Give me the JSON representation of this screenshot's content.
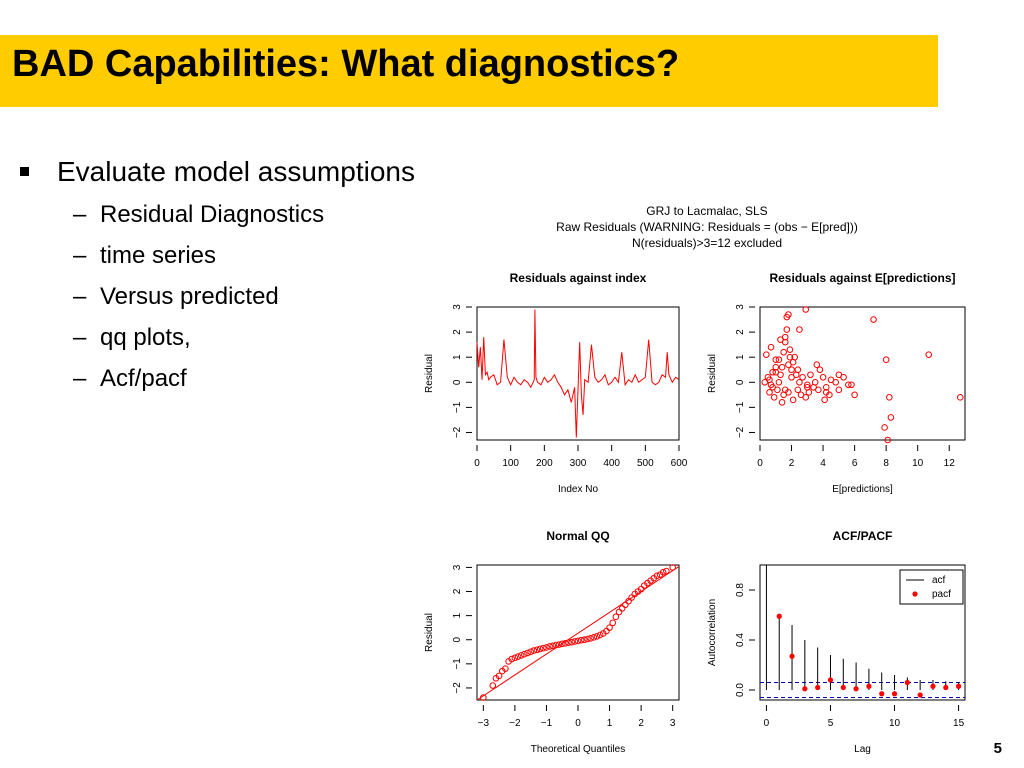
{
  "slide": {
    "title": "BAD Capabilities: What diagnostics?",
    "page_number": "5",
    "bullets": {
      "main": "Evaluate model assumptions",
      "subs": [
        "Residual Diagnostics",
        "time series",
        "Versus predicted",
        "qq plots,",
        "Acf/pacf"
      ],
      "dash": "–"
    },
    "figure_header": [
      "GRJ to Lacmalac, SLS",
      "Raw Residuals (WARNING: Residuals = (obs − E[pred]))",
      "N(residuals)>3=12 excluded"
    ]
  },
  "colors": {
    "title_bg": "#ffcc00",
    "series": "#ff0000",
    "ref_line": "#0000aa"
  },
  "chart_data": [
    {
      "type": "line",
      "title": "Residuals against index",
      "xlabel": "Index No",
      "ylabel": "Residual",
      "xlim": [
        0,
        600
      ],
      "ylim": [
        -2.3,
        3.0
      ],
      "xticks": [
        "0",
        "100",
        "200",
        "300",
        "400",
        "500",
        "600"
      ],
      "yticks": [
        "−2",
        "−1",
        "0",
        "1",
        "2",
        "3"
      ],
      "x": [
        0,
        5,
        10,
        15,
        20,
        25,
        30,
        35,
        40,
        50,
        60,
        70,
        80,
        90,
        100,
        110,
        120,
        130,
        140,
        150,
        160,
        170,
        172,
        175,
        180,
        190,
        200,
        210,
        220,
        230,
        240,
        250,
        260,
        270,
        280,
        290,
        295,
        300,
        305,
        310,
        315,
        320,
        330,
        340,
        350,
        360,
        370,
        380,
        390,
        400,
        410,
        420,
        430,
        440,
        450,
        460,
        470,
        480,
        490,
        500,
        510,
        520,
        530,
        540,
        550,
        560,
        565,
        570,
        580,
        590,
        600
      ],
      "y": [
        1.6,
        0.6,
        1.4,
        0.1,
        1.8,
        0.3,
        0.4,
        0.1,
        0.2,
        0.3,
        -0.1,
        0.0,
        1.7,
        0.2,
        -0.1,
        0.2,
        0.0,
        -0.1,
        0.1,
        0.0,
        -0.2,
        0.1,
        2.9,
        0.2,
        0.0,
        -0.1,
        0.2,
        0.0,
        0.1,
        0.3,
        0.0,
        -0.2,
        -0.5,
        -0.3,
        -0.8,
        -0.2,
        -2.2,
        -0.3,
        1.6,
        -0.5,
        -1.3,
        0.1,
        0.0,
        1.5,
        0.2,
        0.0,
        0.1,
        0.3,
        -0.1,
        0.0,
        0.2,
        0.0,
        1.2,
        -0.1,
        0.1,
        0.0,
        0.3,
        0.0,
        0.1,
        0.2,
        1.7,
        0.0,
        -0.1,
        0.0,
        0.3,
        0.2,
        1.2,
        0.3,
        0.0,
        0.2,
        0.1
      ]
    },
    {
      "type": "scatter",
      "title": "Residuals against E[predictions]",
      "xlabel": "E[predictions]",
      "ylabel": "Residual",
      "xlim": [
        0,
        13
      ],
      "ylim": [
        -2.3,
        3.0
      ],
      "xticks": [
        "0",
        "2",
        "4",
        "6",
        "8",
        "10",
        "12"
      ],
      "yticks": [
        "−2",
        "−1",
        "0",
        "1",
        "2",
        "3"
      ],
      "x": [
        0.3,
        0.5,
        0.7,
        0.8,
        1.0,
        1.2,
        1.3,
        1.5,
        1.6,
        1.7,
        1.8,
        1.9,
        2.0,
        2.1,
        2.3,
        2.5,
        2.7,
        3.0,
        3.2,
        3.5,
        3.8,
        4.0,
        4.2,
        4.5,
        4.8,
        5.0,
        5.3,
        5.6,
        6.0,
        0.6,
        0.9,
        1.1,
        1.4,
        1.5,
        1.8,
        2.1,
        2.4,
        2.6,
        2.9,
        3.1,
        3.4,
        3.7,
        4.1,
        4.4,
        0.4,
        0.7,
        1.0,
        1.3,
        1.6,
        1.9,
        2.2,
        1.7,
        1.8,
        2.5,
        2.9,
        7.2,
        8.0,
        8.2,
        8.3,
        7.9,
        8.1,
        10.7,
        12.7,
        0.6,
        0.8,
        1.0,
        1.2,
        1.4,
        1.6,
        2.0,
        2.4,
        3.0,
        3.6,
        4.2,
        5.0,
        5.8
      ],
      "y": [
        0.0,
        0.2,
        -0.1,
        0.4,
        0.6,
        0.9,
        0.3,
        1.2,
        1.6,
        2.1,
        0.7,
        1.0,
        0.5,
        0.8,
        0.3,
        0.0,
        0.2,
        -0.1,
        0.3,
        0.0,
        0.5,
        0.2,
        -0.2,
        0.1,
        0.0,
        -0.3,
        0.2,
        -0.1,
        -0.5,
        -0.4,
        -0.6,
        -0.3,
        -0.8,
        -0.5,
        -0.4,
        -0.7,
        -0.3,
        -0.5,
        -0.6,
        -0.4,
        -0.2,
        -0.3,
        -0.7,
        -0.5,
        1.1,
        1.4,
        0.9,
        1.7,
        1.8,
        1.3,
        1.0,
        2.6,
        2.7,
        2.1,
        2.9,
        2.5,
        0.9,
        -0.6,
        -1.4,
        -1.8,
        -2.3,
        1.1,
        -0.6,
        0.1,
        -0.2,
        0.4,
        0.0,
        0.6,
        -0.3,
        0.2,
        0.5,
        -0.2,
        0.7,
        -0.4,
        0.3,
        -0.1
      ]
    },
    {
      "type": "scatter",
      "title": "Normal QQ",
      "xlabel": "Theoretical Quantiles",
      "ylabel": "Residual",
      "xlim": [
        -3.2,
        3.2
      ],
      "ylim": [
        -2.5,
        3.1
      ],
      "xticks": [
        "−3",
        "−2",
        "−1",
        "0",
        "1",
        "2",
        "3"
      ],
      "yticks": [
        "−2",
        "−1",
        "0",
        "1",
        "2",
        "3"
      ],
      "x": [
        -3.0,
        -2.7,
        -2.6,
        -2.5,
        -2.4,
        -2.3,
        -2.2,
        -2.1,
        -2.0,
        -1.9,
        -1.8,
        -1.7,
        -1.6,
        -1.5,
        -1.4,
        -1.3,
        -1.2,
        -1.1,
        -1.0,
        -0.9,
        -0.8,
        -0.7,
        -0.6,
        -0.5,
        -0.4,
        -0.3,
        -0.2,
        -0.1,
        0.0,
        0.1,
        0.2,
        0.3,
        0.4,
        0.5,
        0.6,
        0.7,
        0.8,
        0.9,
        1.0,
        1.1,
        1.2,
        1.3,
        1.4,
        1.5,
        1.6,
        1.7,
        1.8,
        1.9,
        2.0,
        2.1,
        2.2,
        2.3,
        2.4,
        2.5,
        2.6,
        2.7,
        2.8,
        3.0
      ],
      "y": [
        -2.4,
        -1.9,
        -1.6,
        -1.5,
        -1.3,
        -1.2,
        -0.9,
        -0.8,
        -0.75,
        -0.7,
        -0.65,
        -0.6,
        -0.55,
        -0.5,
        -0.45,
        -0.42,
        -0.38,
        -0.35,
        -0.32,
        -0.28,
        -0.25,
        -0.22,
        -0.2,
        -0.17,
        -0.15,
        -0.12,
        -0.1,
        -0.07,
        -0.05,
        -0.02,
        0.0,
        0.03,
        0.06,
        0.1,
        0.14,
        0.2,
        0.26,
        0.36,
        0.5,
        0.7,
        0.95,
        1.15,
        1.3,
        1.45,
        1.6,
        1.75,
        1.9,
        2.0,
        2.1,
        2.25,
        2.35,
        2.45,
        2.55,
        2.65,
        2.7,
        2.8,
        2.85,
        3.0
      ],
      "reference_line": {
        "intercept": 0.0,
        "slope": 0.95
      }
    },
    {
      "type": "bar",
      "title": "ACF/PACF",
      "xlabel": "Lag",
      "ylabel": "Autocorrelation",
      "xlim": [
        -0.5,
        15.5
      ],
      "ylim": [
        -0.08,
        1.0
      ],
      "xticks": [
        "0",
        "5",
        "10",
        "15"
      ],
      "yticks": [
        "0.0",
        "0.4",
        "0.8"
      ],
      "lags": [
        0,
        1,
        2,
        3,
        4,
        5,
        6,
        7,
        8,
        9,
        10,
        11,
        12,
        13,
        14,
        15
      ],
      "series": [
        {
          "name": "acf",
          "values": [
            1.0,
            0.61,
            0.52,
            0.4,
            0.34,
            0.28,
            0.25,
            0.22,
            0.17,
            0.14,
            0.12,
            0.1,
            0.08,
            0.08,
            0.07,
            0.06
          ]
        },
        {
          "name": "pacf",
          "values": [
            null,
            0.59,
            0.27,
            0.01,
            0.02,
            0.08,
            0.02,
            0.01,
            0.03,
            -0.03,
            -0.03,
            0.06,
            -0.04,
            0.03,
            0.02,
            0.03
          ]
        }
      ],
      "confidence_bounds": [
        0.06,
        -0.06
      ],
      "legend_position": "top-right"
    }
  ]
}
